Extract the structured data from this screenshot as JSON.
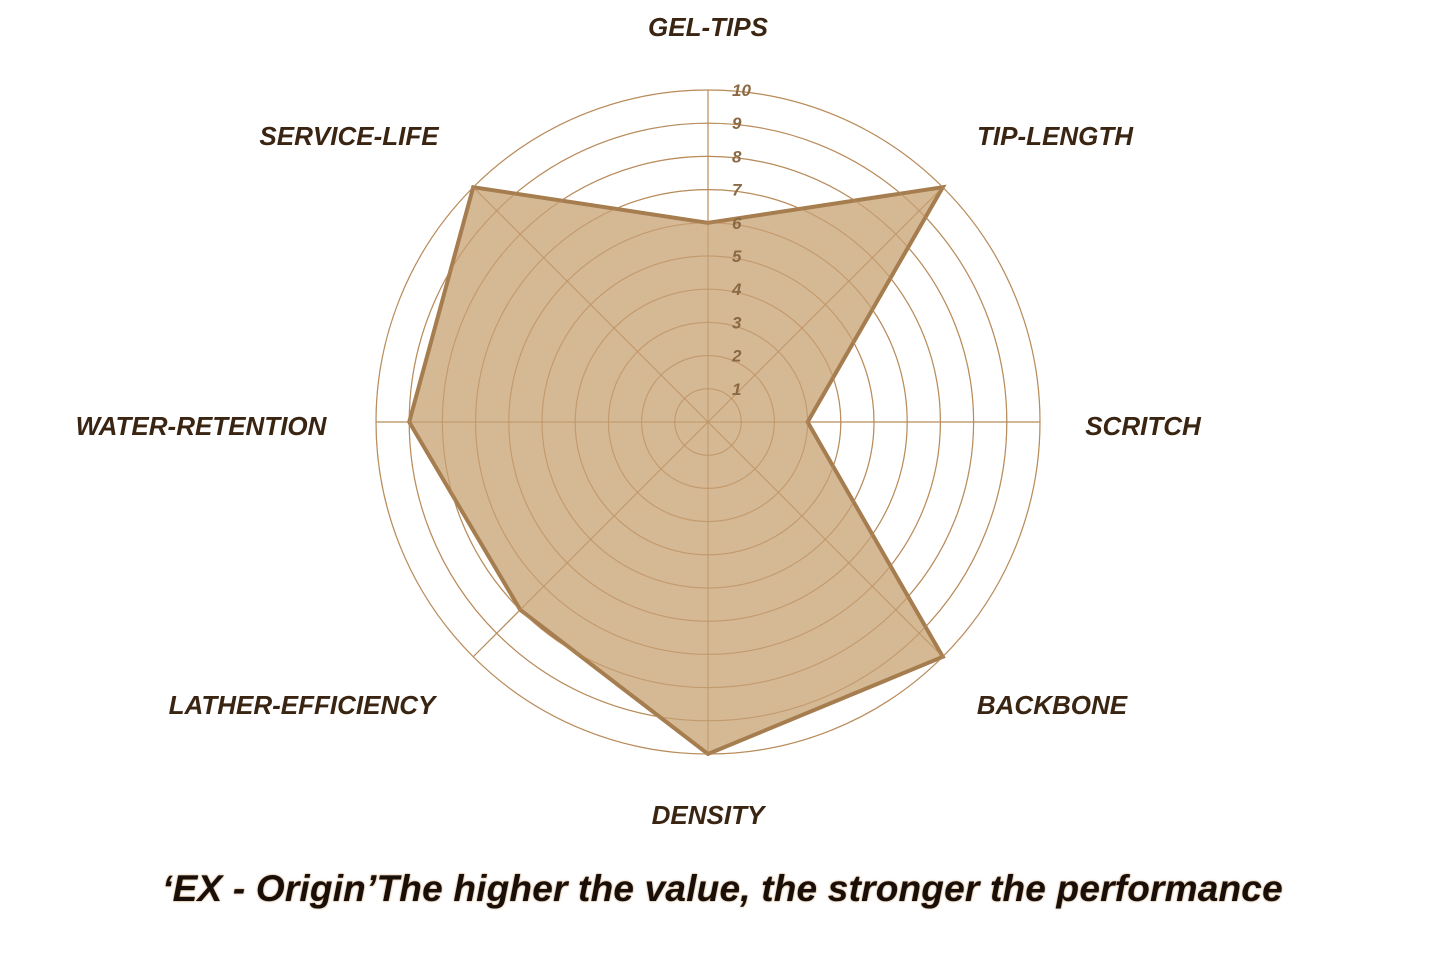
{
  "chart_data": {
    "type": "radar",
    "axes": [
      "GEL-TIPS",
      "TIP-LENGTH",
      "SCRITCH",
      "BACKBONE",
      "DENSITY",
      "LATHER-EFFICIENCY",
      "WATER-RETENTION",
      "SERVICE-LIFE"
    ],
    "values": [
      6,
      10,
      3,
      10,
      10,
      8,
      9,
      10
    ],
    "range": [
      0,
      10
    ],
    "ticks": [
      "1",
      "2",
      "3",
      "4",
      "5",
      "6",
      "7",
      "8",
      "9",
      "10"
    ],
    "colors": {
      "fill": "#cfae85",
      "stroke": "#a57d4f",
      "grid": "#b98d5c",
      "label": "#3a2412"
    }
  },
  "caption": "‘EX - Origin’The higher the value, the stronger the performance"
}
